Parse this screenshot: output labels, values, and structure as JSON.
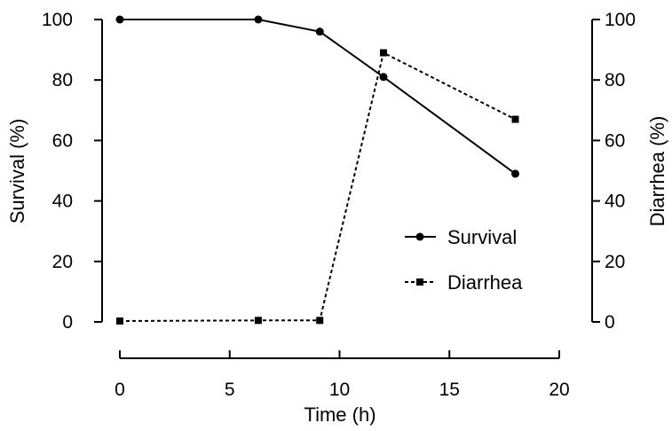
{
  "chart_data": {
    "type": "line",
    "xlabel": "Time (h)",
    "ylabel_left": "Survival (%)",
    "ylabel_right": "Diarrhea (%)",
    "xlim": [
      0,
      20
    ],
    "ylim_left": [
      0,
      100
    ],
    "ylim_right": [
      0,
      100
    ],
    "x_ticks": [
      "0",
      "5",
      "10",
      "15",
      "20"
    ],
    "y_ticks_left": [
      "0",
      "20",
      "40",
      "60",
      "80",
      "100"
    ],
    "y_ticks_right": [
      "0",
      "20",
      "40",
      "60",
      "80",
      "100"
    ],
    "grid": false,
    "legend_position": "center-right",
    "series": [
      {
        "name": "Survival",
        "axis": "left",
        "marker": "circle",
        "line_style": "solid",
        "x": [
          0,
          6.3,
          9.1,
          12,
          18
        ],
        "y": [
          100,
          100,
          96,
          81,
          49
        ]
      },
      {
        "name": "Diarrhea",
        "axis": "right",
        "marker": "square",
        "line_style": "dashed",
        "x": [
          0,
          6.3,
          9.1,
          12,
          18
        ],
        "y": [
          0.3,
          0.5,
          0.5,
          89,
          67
        ]
      }
    ]
  }
}
